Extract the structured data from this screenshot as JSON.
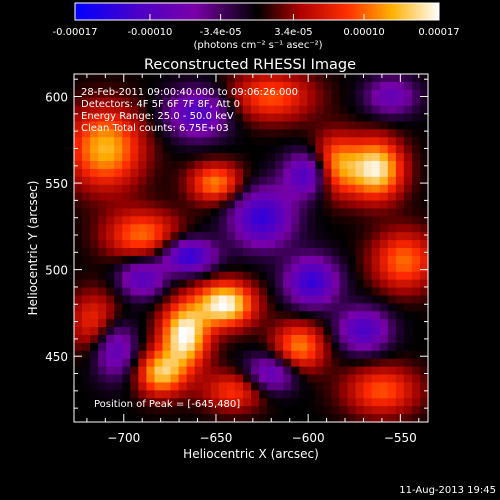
{
  "colorbar": {
    "tick_labels": [
      "-0.00017",
      "-0.00010",
      "-3.4e-05",
      "3.4e-05",
      "0.00010",
      "0.00017"
    ],
    "tick_values": [
      -0.00017,
      -0.0001,
      -3.4e-05,
      3.4e-05,
      0.0001,
      0.00017
    ],
    "range": [
      -0.00017,
      0.00017
    ],
    "unit_label": "(photons cm⁻² s⁻¹ asec⁻²)"
  },
  "chart_data": {
    "type": "heatmap",
    "title": "Reconstructed RHESSI Image",
    "xlabel": "Heliocentric X (arcsec)",
    "ylabel": "Heliocentric Y (arcsec)",
    "xlim": [
      -727,
      -535
    ],
    "ylim": [
      412,
      613
    ],
    "x_ticks": [
      -700,
      -650,
      -600,
      -550
    ],
    "x_tick_labels": [
      "−700",
      "−650",
      "−600",
      "−550"
    ],
    "y_ticks": [
      450,
      500,
      550,
      600
    ],
    "y_tick_labels": [
      "450",
      "500",
      "550",
      "600"
    ],
    "colormap": "rhessi-blue-purple-black-red-yellow-white",
    "value_range": [
      -0.00017,
      0.00017
    ],
    "peak": {
      "x": -645,
      "y": 480
    },
    "annotations": [
      "28-Feb-2011 09:00:40.000 to 09:06:26.000",
      "Detectors: 4F 5F 6F 7F 8F, Att 0",
      "Energy Range: 25.0 - 50.0 keV",
      "Clean    Total counts: 6.75E+03",
      "Position of Peak = [-645,480]"
    ],
    "sources": [
      {
        "x": -667,
        "y": 462,
        "amp": 0.00017,
        "sx": 9,
        "sy": 13
      },
      {
        "x": -645,
        "y": 480,
        "amp": 0.00017,
        "sx": 11,
        "sy": 9
      },
      {
        "x": -563,
        "y": 558,
        "amp": 0.00016,
        "sx": 10,
        "sy": 12
      },
      {
        "x": -585,
        "y": 560,
        "amp": 0.00012,
        "sx": 9,
        "sy": 12
      },
      {
        "x": -680,
        "y": 440,
        "amp": 0.00013,
        "sx": 9,
        "sy": 9
      },
      {
        "x": -710,
        "y": 570,
        "amp": 0.00013,
        "sx": 14,
        "sy": 16
      },
      {
        "x": -650,
        "y": 550,
        "amp": 0.00011,
        "sx": 10,
        "sy": 8
      },
      {
        "x": -690,
        "y": 520,
        "amp": 0.0001,
        "sx": 14,
        "sy": 10
      },
      {
        "x": -605,
        "y": 455,
        "amp": 0.00011,
        "sx": 10,
        "sy": 10
      },
      {
        "x": -548,
        "y": 505,
        "amp": 0.0001,
        "sx": 12,
        "sy": 12
      },
      {
        "x": -715,
        "y": 470,
        "amp": 8e-05,
        "sx": 10,
        "sy": 12
      },
      {
        "x": -620,
        "y": 600,
        "amp": 9e-05,
        "sx": 16,
        "sy": 10
      },
      {
        "x": -560,
        "y": 430,
        "amp": 9e-05,
        "sx": 14,
        "sy": 10
      },
      {
        "x": -640,
        "y": 430,
        "amp": 8e-05,
        "sx": 12,
        "sy": 8
      },
      {
        "x": -665,
        "y": 508,
        "amp": -0.00014,
        "sx": 10,
        "sy": 7
      },
      {
        "x": -690,
        "y": 495,
        "amp": -0.0001,
        "sx": 9,
        "sy": 8
      },
      {
        "x": -625,
        "y": 530,
        "amp": -0.00013,
        "sx": 12,
        "sy": 12
      },
      {
        "x": -600,
        "y": 555,
        "amp": -0.00012,
        "sx": 9,
        "sy": 9
      },
      {
        "x": -598,
        "y": 493,
        "amp": -0.00013,
        "sx": 10,
        "sy": 10
      },
      {
        "x": -660,
        "y": 590,
        "amp": -0.00011,
        "sx": 12,
        "sy": 10
      },
      {
        "x": -705,
        "y": 455,
        "amp": -0.0001,
        "sx": 8,
        "sy": 12
      },
      {
        "x": -570,
        "y": 465,
        "amp": -0.00011,
        "sx": 10,
        "sy": 9
      },
      {
        "x": -620,
        "y": 440,
        "amp": -0.0001,
        "sx": 10,
        "sy": 8
      },
      {
        "x": -555,
        "y": 600,
        "amp": -8e-05,
        "sx": 10,
        "sy": 8
      }
    ]
  },
  "timestamp": "11-Aug-2013 19:45"
}
